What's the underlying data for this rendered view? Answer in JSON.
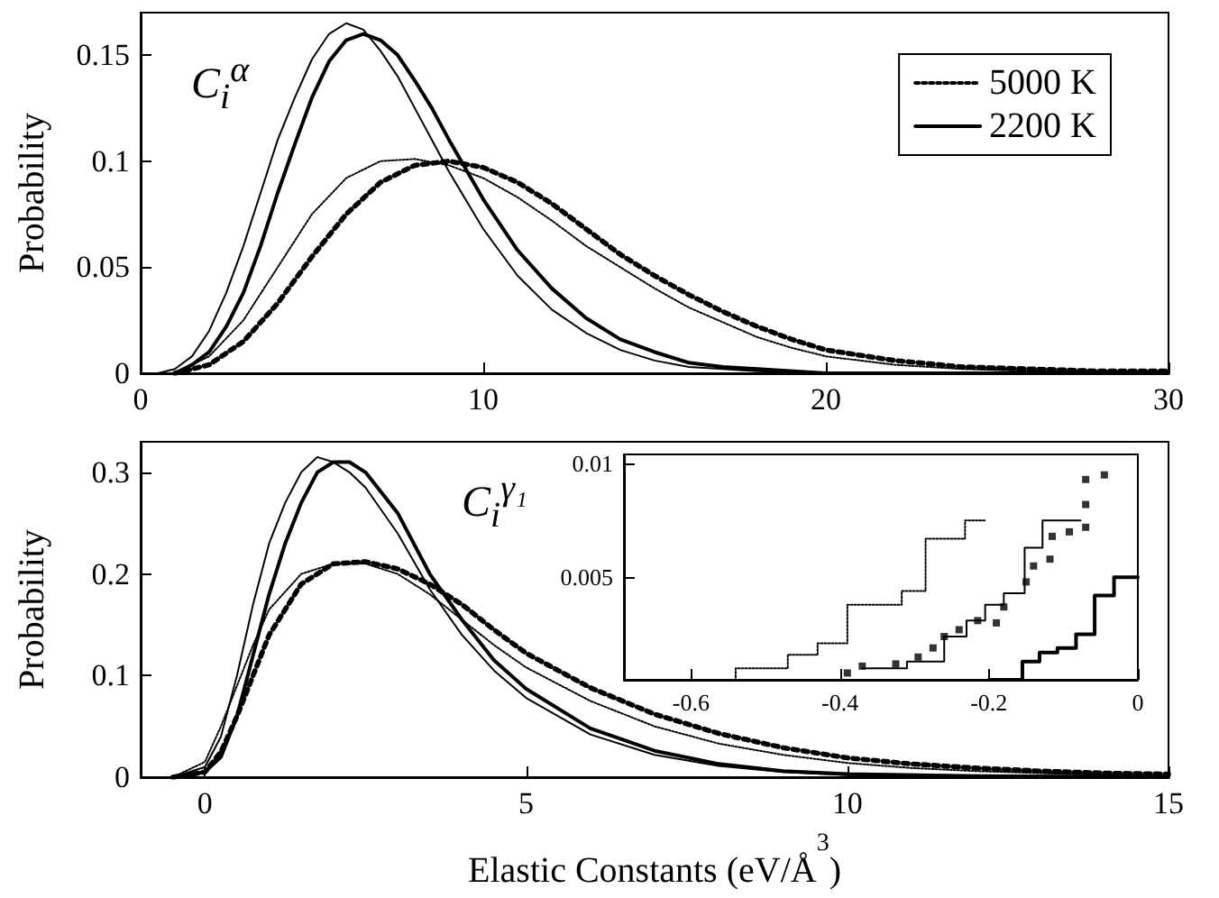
{
  "chart_data": [
    {
      "type": "line",
      "ylabel": "Probability",
      "annotations": [
        "C$_{i}$$^{α}$"
      ],
      "xlim": [
        0,
        30
      ],
      "xticks": [
        0,
        10,
        20,
        30
      ],
      "ylim": [
        0,
        0.17
      ],
      "yticks": [
        0,
        0.05,
        0.1,
        0.15
      ],
      "legend": "top right",
      "series": [
        {
          "color": "#000000",
          "line_style": "dotted",
          "x": [
            1,
            2,
            3,
            4,
            5,
            6,
            7,
            8,
            9,
            10,
            11,
            12,
            13,
            14,
            15,
            16,
            17,
            18,
            19,
            20,
            22,
            24,
            26,
            28,
            30
          ],
          "values": [
            0,
            0.008,
            0.025,
            0.05,
            0.075,
            0.092,
            0.1,
            0.101,
            0.098,
            0.092,
            0.083,
            0.072,
            0.06,
            0.05,
            0.04,
            0.031,
            0.024,
            0.017,
            0.012,
            0.008,
            0.004,
            0.002,
            0.001,
            0,
            0
          ]
        },
        {
          "name": "5000 K",
          "color": "#000000",
          "line_style": "dotted",
          "x": [
            1,
            2,
            3,
            4,
            5,
            6,
            7,
            8,
            9,
            10,
            11,
            12,
            13,
            14,
            15,
            16,
            17,
            18,
            19,
            20,
            22,
            24,
            26,
            28,
            30
          ],
          "values": [
            0,
            0.004,
            0.015,
            0.033,
            0.055,
            0.075,
            0.09,
            0.098,
            0.1,
            0.097,
            0.09,
            0.08,
            0.068,
            0.056,
            0.046,
            0.037,
            0.029,
            0.022,
            0.016,
            0.011,
            0.006,
            0.003,
            0.002,
            0.001,
            0.001
          ]
        },
        {
          "name": "2200 K",
          "color": "#000000",
          "line_style": "solid",
          "x": [
            0.5,
            1,
            1.5,
            2,
            2.5,
            3,
            3.5,
            4,
            4.5,
            5,
            5.5,
            6,
            6.5,
            7,
            7.5,
            8,
            8.5,
            9,
            10,
            11,
            12,
            13,
            14,
            15,
            16,
            17,
            18,
            20,
            22,
            30
          ],
          "values": [
            0,
            0.002,
            0.008,
            0.02,
            0.038,
            0.06,
            0.085,
            0.11,
            0.13,
            0.148,
            0.16,
            0.165,
            0.162,
            0.152,
            0.14,
            0.125,
            0.11,
            0.095,
            0.068,
            0.046,
            0.03,
            0.019,
            0.011,
            0.006,
            0.003,
            0.002,
            0.001,
            0,
            0,
            0
          ]
        },
        {
          "color": "#000000",
          "line_style": "solid",
          "x": [
            1,
            1.5,
            2,
            2.5,
            3,
            3.5,
            4,
            4.5,
            5,
            5.5,
            6,
            6.5,
            7,
            7.5,
            8,
            8.5,
            9,
            10,
            11,
            12,
            13,
            14,
            15,
            16,
            17,
            18,
            20,
            22,
            30
          ],
          "values": [
            0,
            0.004,
            0.01,
            0.022,
            0.038,
            0.06,
            0.085,
            0.108,
            0.13,
            0.147,
            0.157,
            0.16,
            0.157,
            0.15,
            0.138,
            0.125,
            0.11,
            0.082,
            0.058,
            0.04,
            0.026,
            0.016,
            0.01,
            0.005,
            0.003,
            0.002,
            0,
            0,
            0
          ]
        }
      ]
    },
    {
      "type": "line",
      "xlabel": "Elastic Constants (eV/Å$^{3}$)",
      "ylabel": "Probability",
      "annotations": [
        "C$_{i}$$^{γ₁}$"
      ],
      "xlim": [
        -1,
        15
      ],
      "xticks": [
        0,
        5,
        10,
        15
      ],
      "ylim": [
        0,
        0.33
      ],
      "yticks": [
        0,
        0.1,
        0.2,
        0.3
      ],
      "series": [
        {
          "color": "#000000",
          "line_style": "dotted",
          "x": [
            -0.5,
            0,
            0.25,
            0.5,
            0.75,
            1,
            1.5,
            2,
            2.5,
            3,
            3.5,
            4,
            4.5,
            5,
            6,
            7,
            8,
            9,
            10,
            11,
            12,
            13,
            14,
            15
          ],
          "values": [
            0,
            0.015,
            0.05,
            0.09,
            0.13,
            0.165,
            0.2,
            0.21,
            0.21,
            0.2,
            0.18,
            0.155,
            0.13,
            0.108,
            0.075,
            0.05,
            0.033,
            0.022,
            0.014,
            0.009,
            0.006,
            0.004,
            0.002,
            0.001
          ]
        },
        {
          "color": "#000000",
          "line_style": "dotted",
          "x": [
            -0.5,
            0,
            0.25,
            0.5,
            0.75,
            1,
            1.5,
            2,
            2.5,
            3,
            3.5,
            4,
            4.5,
            5,
            6,
            7,
            8,
            9,
            10,
            11,
            12,
            13,
            14,
            15
          ],
          "values": [
            0,
            0.005,
            0.025,
            0.06,
            0.1,
            0.14,
            0.19,
            0.21,
            0.212,
            0.205,
            0.19,
            0.17,
            0.145,
            0.122,
            0.088,
            0.062,
            0.043,
            0.029,
            0.019,
            0.013,
            0.009,
            0.006,
            0.004,
            0.003
          ]
        },
        {
          "color": "#000000",
          "line_style": "solid",
          "x": [
            -0.5,
            0,
            0.25,
            0.5,
            0.75,
            1,
            1.25,
            1.5,
            1.75,
            2,
            2.25,
            2.5,
            3,
            3.5,
            4,
            4.5,
            5,
            6,
            7,
            8,
            9,
            10,
            12,
            15
          ],
          "values": [
            0,
            0.01,
            0.04,
            0.1,
            0.17,
            0.23,
            0.27,
            0.3,
            0.315,
            0.31,
            0.3,
            0.285,
            0.24,
            0.185,
            0.14,
            0.105,
            0.078,
            0.042,
            0.022,
            0.011,
            0.005,
            0.002,
            0,
            0
          ]
        },
        {
          "color": "#000000",
          "line_style": "solid",
          "x": [
            -0.5,
            0,
            0.25,
            0.5,
            0.75,
            1,
            1.25,
            1.5,
            1.75,
            2,
            2.25,
            2.5,
            3,
            3.5,
            4,
            4.5,
            5,
            6,
            7,
            8,
            9,
            10,
            12,
            15
          ],
          "values": [
            0,
            0.005,
            0.02,
            0.06,
            0.12,
            0.18,
            0.23,
            0.27,
            0.3,
            0.31,
            0.31,
            0.3,
            0.26,
            0.2,
            0.155,
            0.115,
            0.087,
            0.048,
            0.026,
            0.013,
            0.006,
            0.003,
            0.001,
            0
          ]
        }
      ]
    },
    {
      "type": "step",
      "xlim": [
        -0.69,
        0
      ],
      "xticks": [
        -0.6,
        -0.4,
        -0.2,
        0
      ],
      "ylim": [
        0.0005,
        0.0104
      ],
      "yticks": [
        0.005,
        0.01
      ],
      "series": [
        {
          "color": "#000000",
          "line_style": "dotted",
          "x": [
            -0.58,
            -0.54,
            -0.47,
            -0.43,
            -0.39,
            -0.317,
            -0.285,
            -0.232,
            -0.204
          ],
          "values": [
            0.0005,
            0.001,
            0.0016,
            0.0021,
            0.0038,
            0.0044,
            0.0067,
            0.0075,
            0.0075
          ]
        },
        {
          "type": "scatter",
          "marker": "square",
          "color": "#000000",
          "x": [
            -0.39,
            -0.37,
            -0.325,
            -0.295,
            -0.275,
            -0.26,
            -0.24,
            -0.215,
            -0.19,
            -0.18,
            -0.15,
            -0.14,
            -0.118,
            -0.115,
            -0.092,
            -0.07,
            -0.07,
            -0.07,
            -0.045
          ],
          "values": [
            0.0008,
            0.0011,
            0.0012,
            0.0015,
            0.0019,
            0.0024,
            0.0027,
            0.0031,
            0.003,
            0.0037,
            0.0048,
            0.0055,
            0.0058,
            0.0068,
            0.007,
            0.0072,
            0.0082,
            0.0093,
            0.0095
          ]
        },
        {
          "color": "#000000",
          "line_style": "solid",
          "x": [
            -0.37,
            -0.31,
            -0.26,
            -0.23,
            -0.205,
            -0.18,
            -0.152,
            -0.128,
            -0.077
          ],
          "values": [
            0.001,
            0.0013,
            0.0024,
            0.0031,
            0.0038,
            0.0043,
            0.0063,
            0.0075,
            0.0075
          ]
        },
        {
          "color": "#000000",
          "line_style": "solid",
          "x": [
            -0.2,
            -0.155,
            -0.132,
            -0.108,
            -0.083,
            -0.058,
            -0.032,
            0
          ],
          "values": [
            0.0005,
            0.0013,
            0.0017,
            0.0019,
            0.0025,
            0.0042,
            0.005,
            0.005
          ]
        }
      ]
    }
  ]
}
